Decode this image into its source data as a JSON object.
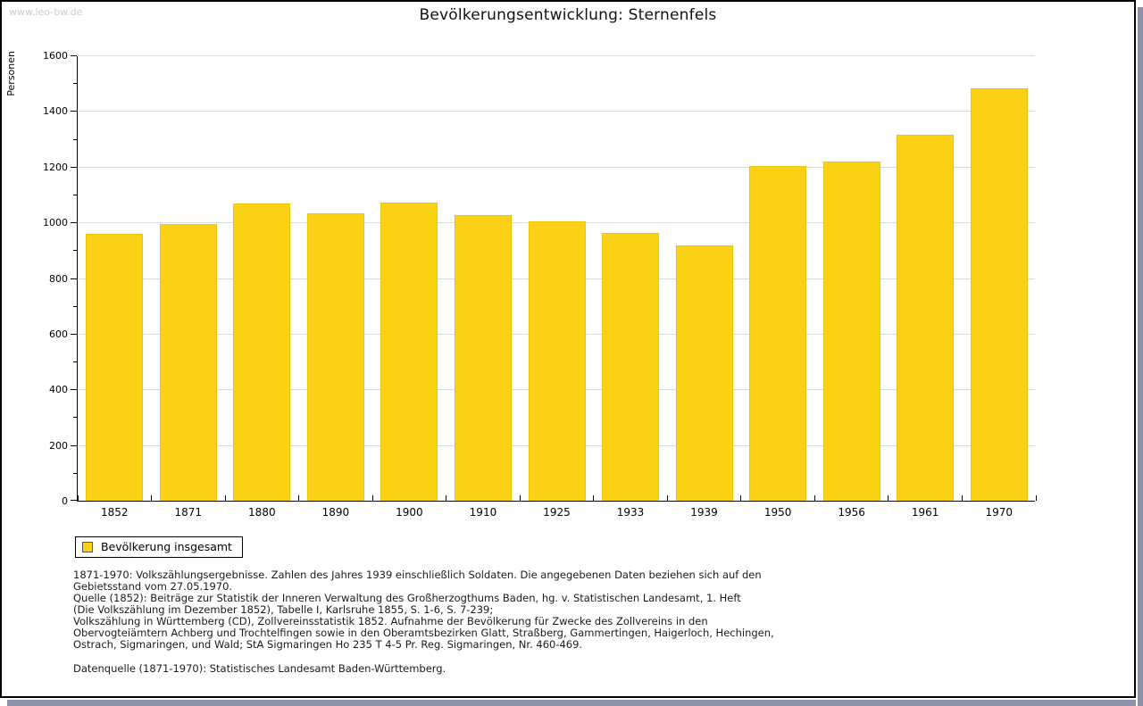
{
  "watermark": "www.leo-bw.de",
  "title": "Bevölkerungsentwicklung: Sternenfels",
  "chart_data": {
    "type": "bar",
    "title": "Bevölkerungsentwicklung: Sternenfels",
    "categories": [
      "1852",
      "1871",
      "1880",
      "1890",
      "1900",
      "1910",
      "1925",
      "1933",
      "1939",
      "1950",
      "1956",
      "1961",
      "1970"
    ],
    "values": [
      960,
      995,
      1067,
      1032,
      1070,
      1025,
      1004,
      962,
      918,
      1202,
      1218,
      1314,
      1481
    ],
    "series": [
      {
        "name": "Bevölkerung insgesamt",
        "values": [
          960,
          995,
          1067,
          1032,
          1070,
          1025,
          1004,
          962,
          918,
          1202,
          1218,
          1314,
          1481
        ]
      }
    ],
    "xlabel": "",
    "ylabel": "Personen",
    "ylim": [
      0,
      1600
    ],
    "ytick_step": 200,
    "yminor_step": 100,
    "grid": true,
    "legend_position": "bottom-left",
    "bar_color": "#FBD116"
  },
  "legend": {
    "label": "Bevölkerung insgesamt",
    "swatch_color": "#FBD116"
  },
  "footnotes": [
    "1871-1970: Volkszählungsergebnisse. Zahlen des Jahres 1939 einschließlich Soldaten. Die angegebenen Daten beziehen sich auf den",
    "Gebietsstand vom 27.05.1970.",
    "Quelle (1852): Beiträge zur Statistik der Inneren Verwaltung des Großherzogthums Baden, hg. v. Statistischen Landesamt, 1. Heft",
    "(Die Volkszählung im Dezember 1852), Tabelle I, Karlsruhe 1855, S. 1-6, S. 7-239;",
    "Volkszählung in Württemberg (CD), Zollvereinsstatistik 1852. Aufnahme der Bevölkerung für Zwecke des Zollvereins in den",
    "Obervogteiämtern Achberg und Trochtelfingen sowie in den Oberamtsbezirken Glatt, Straßberg, Gammertingen, Haigerloch, Hechingen,",
    "Ostrach, Sigmaringen, und Wald; StA Sigmaringen Ho 235 T 4-5 Pr. Reg. Sigmaringen, Nr. 460-469."
  ],
  "datenquelle": "Datenquelle (1871-1970): Statistisches Landesamt Baden-Württemberg.",
  "colors": {
    "bar_fill": "#FBD116",
    "gridline": "#dcdcdc",
    "axis": "#000000",
    "watermark": "#cccccc",
    "shadow": "#8b92a8"
  }
}
